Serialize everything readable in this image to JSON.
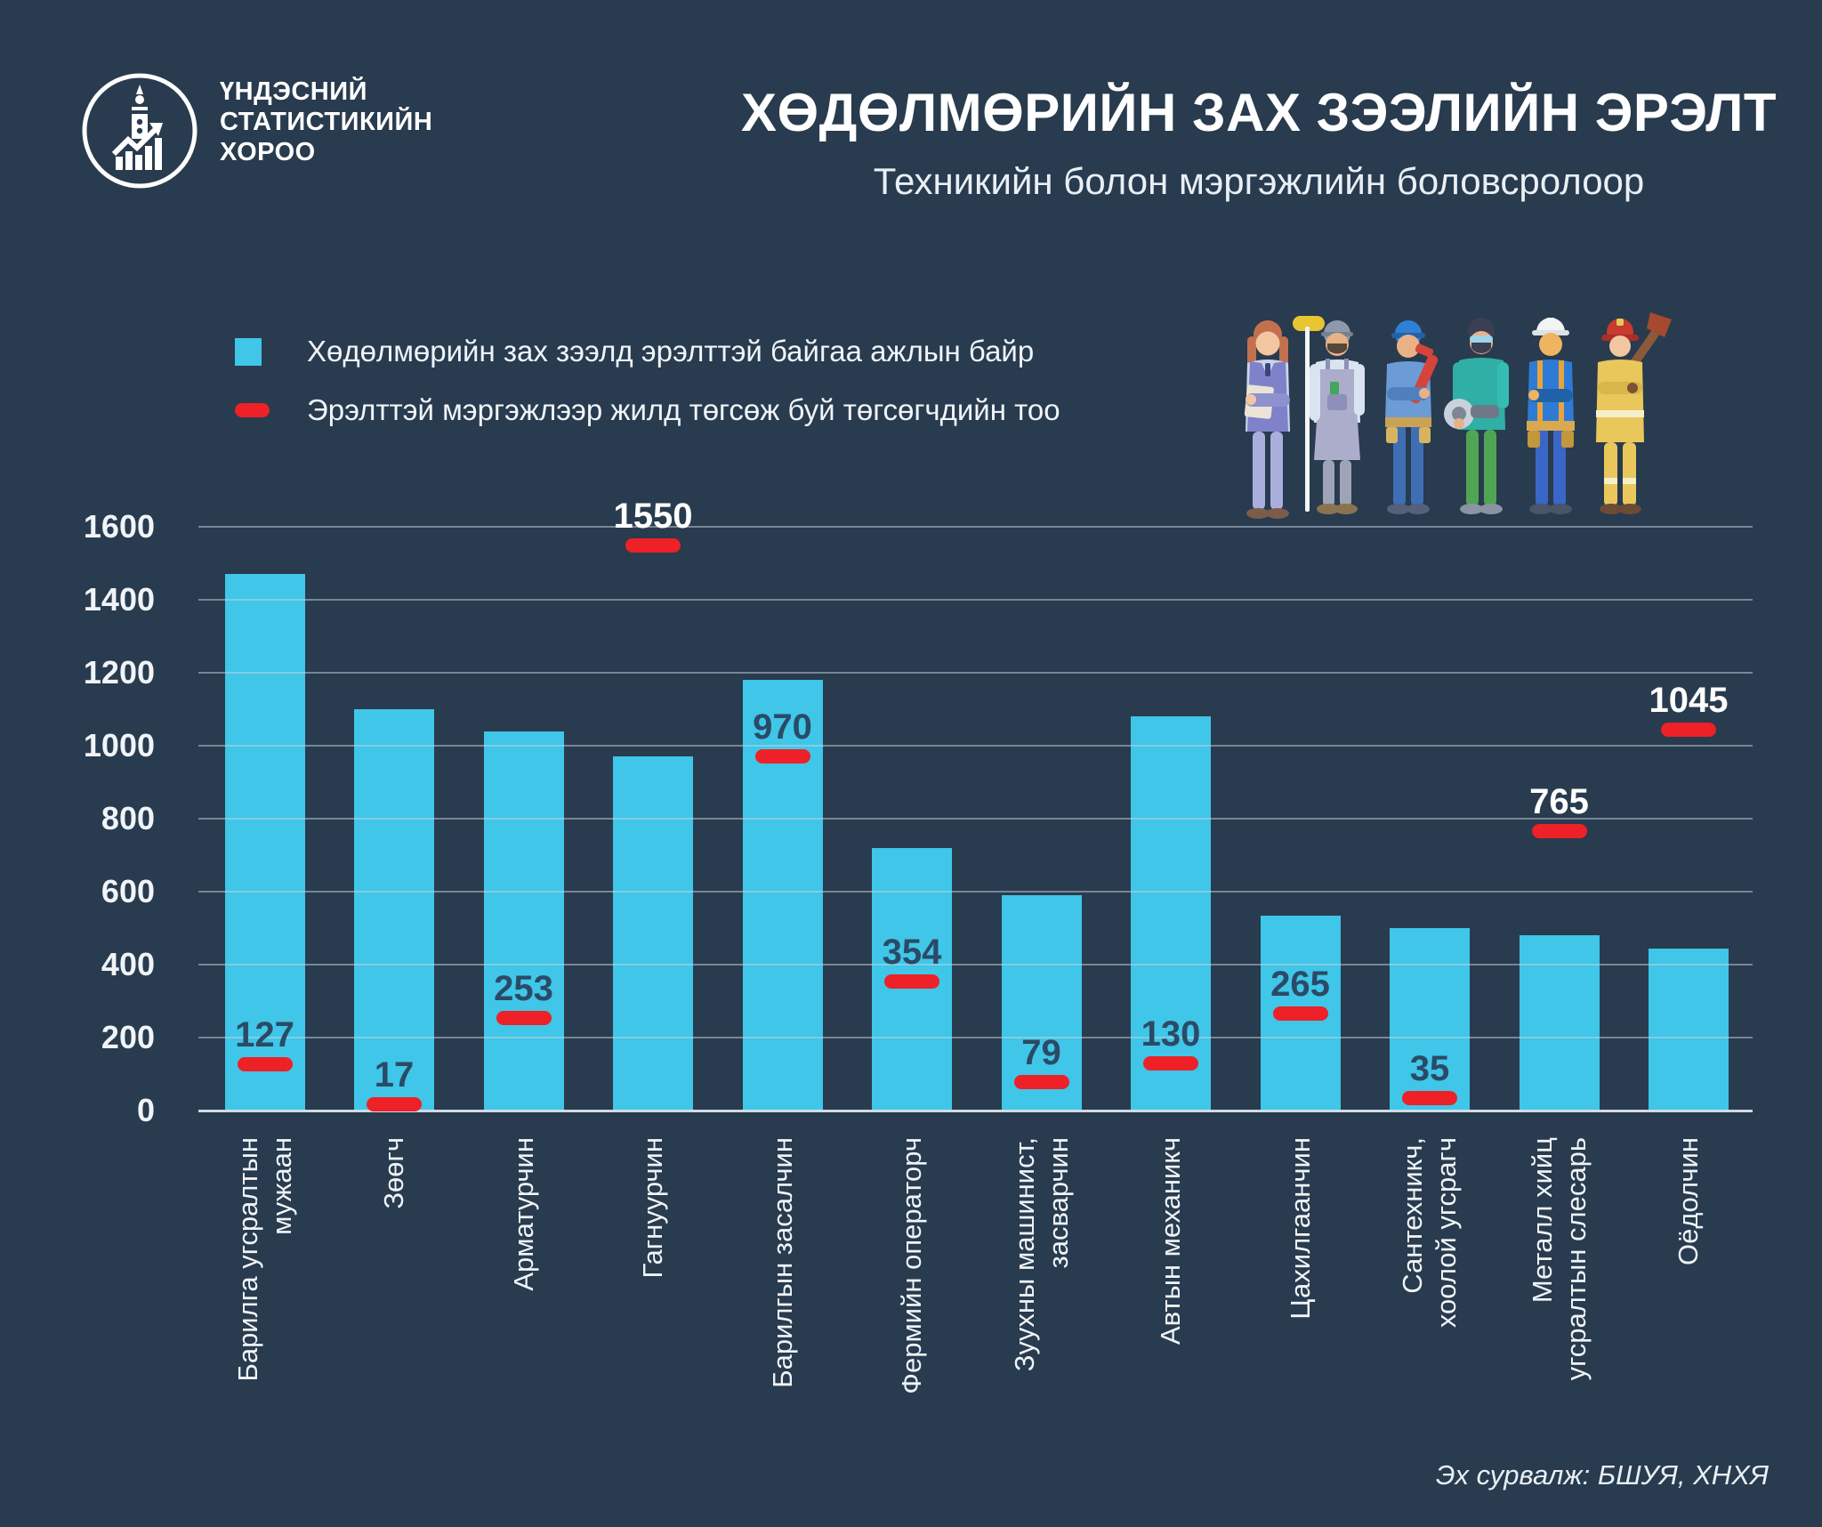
{
  "theme": {
    "background": "#293B4E",
    "bar_color": "#3FC6E8",
    "marker_color": "#ED2127",
    "value_on_bar_color": "#2B4A66",
    "value_off_bar_color": "#FFFFFF",
    "gridline_color": "#C8D2DC",
    "text_color": "#F0F4F8"
  },
  "header": {
    "org_name_lines": [
      "ҮНДЭСНИЙ",
      "СТАТИСТИКИЙН",
      "ХОРОО"
    ],
    "title": "ХӨДӨЛМӨРИЙН ЗАХ ЗЭЭЛИЙН ЭРЭЛТ",
    "subtitle": "Техникийн болон мэргэжлийн боловсролоор"
  },
  "legend": {
    "items": [
      {
        "label": "Хөдөлмөрийн зах зээлд эрэлттэй байгаа ажлын байр",
        "marker": "square",
        "color": "#3FC6E8"
      },
      {
        "label": "Эрэлттэй мэргэжлээр жилд төгсөж буй төгсөгчдийн тоо",
        "marker": "dash",
        "color": "#ED2127"
      }
    ]
  },
  "chart_data": {
    "type": "bar",
    "title": "ХӨДӨЛМӨРИЙН ЗАХ ЗЭЭЛИЙН ЭРЭЛТ",
    "subtitle": "Техникийн болон мэргэжлийн боловсролоор",
    "categories": [
      "Барилга угсралтын\nмужаан",
      "Зөөгч",
      "Арматурчин",
      "Гагнуурчин",
      "Барилгын засалчин",
      "Фермийн операторч",
      "Зуухны машинист,\nзасварчин",
      "Автын механикч",
      "Цахилгаанчин",
      "Сантехникч,\nхоолой угсрагч",
      "Металл хийц\nугсралтын слесарь",
      "Оёдолчин"
    ],
    "series": [
      {
        "name": "Хөдөлмөрийн зах зээлд эрэлттэй байгаа ажлын байр",
        "render": "bar",
        "values": [
          1470,
          1100,
          1040,
          970,
          1180,
          720,
          590,
          1080,
          535,
          500,
          480,
          445
        ]
      },
      {
        "name": "Эрэлттэй мэргэжлээр жилд төгсөж буй төгсөгчдийн тоо",
        "render": "dash-marker",
        "labeled": true,
        "values": [
          127,
          17,
          253,
          1550,
          970,
          354,
          79,
          130,
          265,
          35,
          765,
          1045
        ]
      }
    ],
    "xlabel": "",
    "ylabel": "",
    "ylim": [
      0,
      1600
    ],
    "yticks": [
      0,
      200,
      400,
      600,
      800,
      1000,
      1200,
      1400,
      1600
    ],
    "grid": true,
    "legend_position": "top-left",
    "colors": {
      "bar": "#3FC6E8",
      "marker": "#ED2127",
      "value_on_bar": "#2B4A66",
      "value_off_bar": "#FFFFFF"
    }
  },
  "source": "Эх сурвалж: БШУЯ, ХНХЯ"
}
